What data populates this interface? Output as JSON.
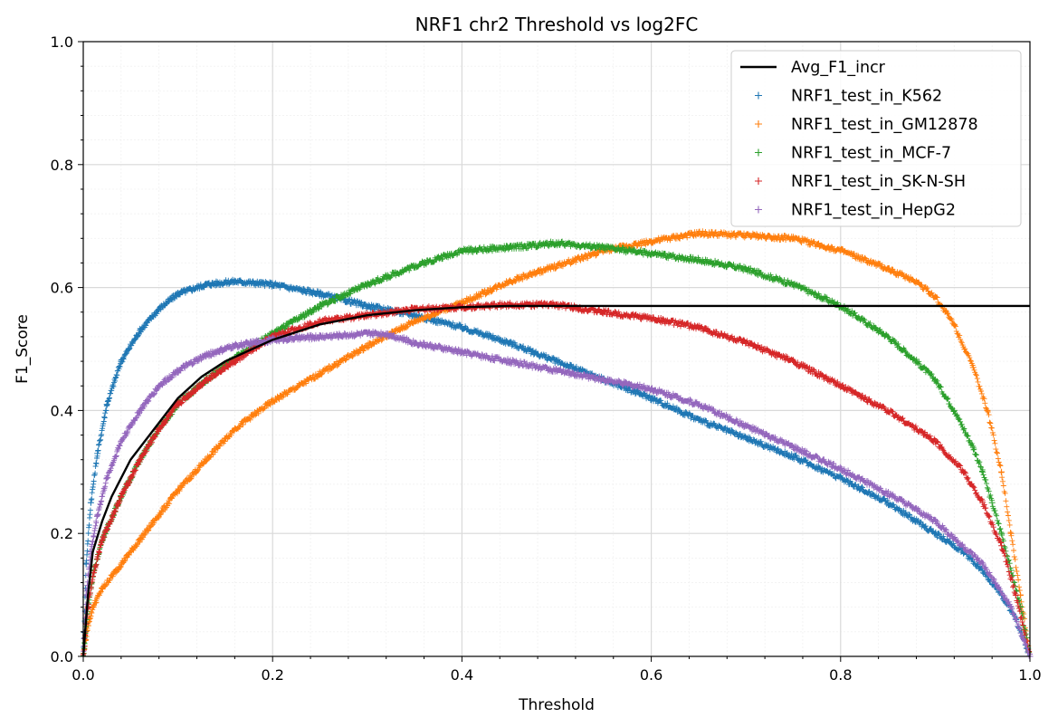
{
  "chart_data": {
    "type": "scatter",
    "title": "NRF1 chr2 Threshold vs log2FC",
    "xlabel": "Threshold",
    "ylabel": "F1_Score",
    "xlim": [
      0,
      1
    ],
    "ylim": [
      0,
      1
    ],
    "xticks": [
      "0.0",
      "0.2",
      "0.4",
      "0.6",
      "0.8",
      "1.0"
    ],
    "yticks": [
      "0.0",
      "0.2",
      "0.4",
      "0.6",
      "0.8",
      "1.0"
    ],
    "grid": true,
    "legend_position": "top-right",
    "series": [
      {
        "name": "Avg_F1_incr",
        "kind": "line",
        "color": "#000000",
        "points": [
          [
            0,
            0
          ],
          [
            0.005,
            0.1
          ],
          [
            0.01,
            0.17
          ],
          [
            0.02,
            0.22
          ],
          [
            0.03,
            0.26
          ],
          [
            0.05,
            0.32
          ],
          [
            0.075,
            0.37
          ],
          [
            0.1,
            0.42
          ],
          [
            0.125,
            0.455
          ],
          [
            0.15,
            0.48
          ],
          [
            0.2,
            0.515
          ],
          [
            0.25,
            0.54
          ],
          [
            0.3,
            0.555
          ],
          [
            0.35,
            0.563
          ],
          [
            0.4,
            0.568
          ],
          [
            0.45,
            0.57
          ],
          [
            0.5,
            0.57
          ],
          [
            1.0,
            0.57
          ]
        ]
      },
      {
        "name": "NRF1_test_in_K562",
        "kind": "marker",
        "color": "#1f77b4",
        "points": [
          [
            0,
            0
          ],
          [
            0.003,
            0.15
          ],
          [
            0.008,
            0.25
          ],
          [
            0.015,
            0.33
          ],
          [
            0.025,
            0.41
          ],
          [
            0.04,
            0.48
          ],
          [
            0.06,
            0.53
          ],
          [
            0.08,
            0.565
          ],
          [
            0.1,
            0.59
          ],
          [
            0.13,
            0.605
          ],
          [
            0.16,
            0.61
          ],
          [
            0.2,
            0.605
          ],
          [
            0.25,
            0.59
          ],
          [
            0.3,
            0.57
          ],
          [
            0.35,
            0.555
          ],
          [
            0.4,
            0.535
          ],
          [
            0.45,
            0.51
          ],
          [
            0.5,
            0.48
          ],
          [
            0.55,
            0.45
          ],
          [
            0.6,
            0.42
          ],
          [
            0.65,
            0.385
          ],
          [
            0.7,
            0.355
          ],
          [
            0.75,
            0.325
          ],
          [
            0.8,
            0.29
          ],
          [
            0.85,
            0.25
          ],
          [
            0.9,
            0.2
          ],
          [
            0.93,
            0.17
          ],
          [
            0.95,
            0.14
          ],
          [
            0.97,
            0.1
          ],
          [
            0.985,
            0.06
          ],
          [
            1.0,
            0
          ]
        ]
      },
      {
        "name": "NRF1_test_in_GM12878",
        "kind": "marker",
        "color": "#ff7f0e",
        "points": [
          [
            0,
            0
          ],
          [
            0.005,
            0.05
          ],
          [
            0.01,
            0.08
          ],
          [
            0.02,
            0.11
          ],
          [
            0.04,
            0.15
          ],
          [
            0.06,
            0.19
          ],
          [
            0.08,
            0.23
          ],
          [
            0.1,
            0.27
          ],
          [
            0.13,
            0.32
          ],
          [
            0.16,
            0.37
          ],
          [
            0.2,
            0.415
          ],
          [
            0.25,
            0.46
          ],
          [
            0.3,
            0.505
          ],
          [
            0.35,
            0.545
          ],
          [
            0.4,
            0.575
          ],
          [
            0.45,
            0.61
          ],
          [
            0.5,
            0.635
          ],
          [
            0.55,
            0.66
          ],
          [
            0.6,
            0.675
          ],
          [
            0.65,
            0.688
          ],
          [
            0.7,
            0.685
          ],
          [
            0.75,
            0.68
          ],
          [
            0.8,
            0.66
          ],
          [
            0.85,
            0.63
          ],
          [
            0.88,
            0.61
          ],
          [
            0.9,
            0.585
          ],
          [
            0.92,
            0.54
          ],
          [
            0.94,
            0.47
          ],
          [
            0.955,
            0.4
          ],
          [
            0.97,
            0.3
          ],
          [
            0.98,
            0.2
          ],
          [
            0.99,
            0.1
          ],
          [
            1.0,
            0
          ]
        ]
      },
      {
        "name": "NRF1_test_in_MCF-7",
        "kind": "marker",
        "color": "#2ca02c",
        "points": [
          [
            0,
            0
          ],
          [
            0.005,
            0.08
          ],
          [
            0.01,
            0.13
          ],
          [
            0.02,
            0.19
          ],
          [
            0.04,
            0.26
          ],
          [
            0.06,
            0.32
          ],
          [
            0.08,
            0.37
          ],
          [
            0.1,
            0.41
          ],
          [
            0.13,
            0.45
          ],
          [
            0.16,
            0.485
          ],
          [
            0.2,
            0.525
          ],
          [
            0.25,
            0.57
          ],
          [
            0.3,
            0.605
          ],
          [
            0.35,
            0.635
          ],
          [
            0.4,
            0.66
          ],
          [
            0.45,
            0.665
          ],
          [
            0.5,
            0.672
          ],
          [
            0.55,
            0.665
          ],
          [
            0.6,
            0.655
          ],
          [
            0.65,
            0.645
          ],
          [
            0.7,
            0.63
          ],
          [
            0.75,
            0.605
          ],
          [
            0.8,
            0.57
          ],
          [
            0.85,
            0.52
          ],
          [
            0.88,
            0.48
          ],
          [
            0.9,
            0.45
          ],
          [
            0.92,
            0.4
          ],
          [
            0.94,
            0.34
          ],
          [
            0.95,
            0.3
          ],
          [
            0.96,
            0.25
          ],
          [
            0.97,
            0.2
          ],
          [
            0.98,
            0.14
          ],
          [
            0.99,
            0.08
          ],
          [
            1.0,
            0
          ]
        ]
      },
      {
        "name": "NRF1_test_in_SK-N-SH",
        "kind": "marker",
        "color": "#d62728",
        "points": [
          [
            0,
            0
          ],
          [
            0.005,
            0.08
          ],
          [
            0.01,
            0.13
          ],
          [
            0.02,
            0.19
          ],
          [
            0.04,
            0.26
          ],
          [
            0.06,
            0.32
          ],
          [
            0.08,
            0.37
          ],
          [
            0.1,
            0.41
          ],
          [
            0.13,
            0.45
          ],
          [
            0.16,
            0.48
          ],
          [
            0.2,
            0.52
          ],
          [
            0.25,
            0.545
          ],
          [
            0.3,
            0.555
          ],
          [
            0.35,
            0.565
          ],
          [
            0.4,
            0.568
          ],
          [
            0.45,
            0.572
          ],
          [
            0.5,
            0.572
          ],
          [
            0.55,
            0.56
          ],
          [
            0.6,
            0.55
          ],
          [
            0.65,
            0.535
          ],
          [
            0.7,
            0.51
          ],
          [
            0.75,
            0.48
          ],
          [
            0.8,
            0.44
          ],
          [
            0.85,
            0.4
          ],
          [
            0.9,
            0.35
          ],
          [
            0.93,
            0.3
          ],
          [
            0.95,
            0.25
          ],
          [
            0.97,
            0.18
          ],
          [
            0.985,
            0.1
          ],
          [
            1.0,
            0
          ]
        ]
      },
      {
        "name": "NRF1_test_in_HepG2",
        "kind": "marker",
        "color": "#9467bd",
        "points": [
          [
            0,
            0
          ],
          [
            0.003,
            0.1
          ],
          [
            0.008,
            0.17
          ],
          [
            0.015,
            0.23
          ],
          [
            0.025,
            0.29
          ],
          [
            0.04,
            0.35
          ],
          [
            0.06,
            0.4
          ],
          [
            0.08,
            0.44
          ],
          [
            0.1,
            0.465
          ],
          [
            0.13,
            0.49
          ],
          [
            0.16,
            0.505
          ],
          [
            0.2,
            0.515
          ],
          [
            0.25,
            0.52
          ],
          [
            0.3,
            0.525
          ],
          [
            0.32,
            0.525
          ],
          [
            0.35,
            0.51
          ],
          [
            0.4,
            0.495
          ],
          [
            0.45,
            0.48
          ],
          [
            0.5,
            0.465
          ],
          [
            0.55,
            0.45
          ],
          [
            0.6,
            0.435
          ],
          [
            0.65,
            0.41
          ],
          [
            0.7,
            0.375
          ],
          [
            0.75,
            0.34
          ],
          [
            0.8,
            0.305
          ],
          [
            0.85,
            0.265
          ],
          [
            0.9,
            0.22
          ],
          [
            0.95,
            0.15
          ],
          [
            0.98,
            0.08
          ],
          [
            1.0,
            0
          ]
        ]
      }
    ]
  }
}
